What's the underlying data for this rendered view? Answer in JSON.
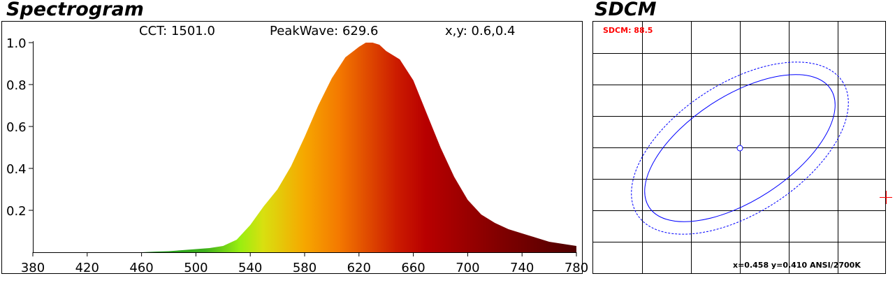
{
  "spectrogram": {
    "title": "Spectrogram",
    "cct_label": "CCT:",
    "cct_value": "1501.0",
    "peak_label": "PeakWave:",
    "peak_value": "629.6",
    "xy_label": "x,y:",
    "xy_value": "0.6,0.4"
  },
  "sdcm": {
    "title": "SDCM",
    "sdcm_label": "SDCM: 88.5",
    "coords_label": "x=0.458 y=0.410 ANSI/2700K",
    "label_color": "#ff0000",
    "ellipse_color": "#0000ff",
    "marker_color": "#ff0000"
  },
  "chart_data": {
    "type": "area",
    "title": "Spectrogram",
    "xlabel": "",
    "ylabel": "",
    "xlim": [
      380,
      780
    ],
    "ylim": [
      0,
      1.0
    ],
    "x_ticks": [
      380,
      420,
      460,
      500,
      540,
      580,
      620,
      660,
      700,
      740,
      780
    ],
    "y_ticks": [
      0.2,
      0.4,
      0.6,
      0.8,
      1.0
    ],
    "y_tick_labels": [
      "0.2",
      "0.4",
      "0.6",
      "0.8",
      "1.0"
    ],
    "grid": false,
    "series": [
      {
        "x": [
          380,
          460,
          470,
          480,
          490,
          500,
          510,
          520,
          530,
          540,
          550,
          560,
          570,
          580,
          590,
          600,
          610,
          620,
          625,
          630,
          635,
          640,
          650,
          660,
          670,
          680,
          690,
          700,
          710,
          720,
          730,
          740,
          750,
          760,
          770,
          780
        ],
        "values": [
          0.0,
          0.0,
          0.003,
          0.005,
          0.01,
          0.015,
          0.02,
          0.03,
          0.06,
          0.13,
          0.22,
          0.3,
          0.41,
          0.55,
          0.7,
          0.83,
          0.93,
          0.98,
          1.0,
          1.0,
          0.99,
          0.96,
          0.92,
          0.82,
          0.66,
          0.5,
          0.36,
          0.25,
          0.18,
          0.14,
          0.11,
          0.09,
          0.07,
          0.05,
          0.04,
          0.03
        ]
      }
    ]
  }
}
